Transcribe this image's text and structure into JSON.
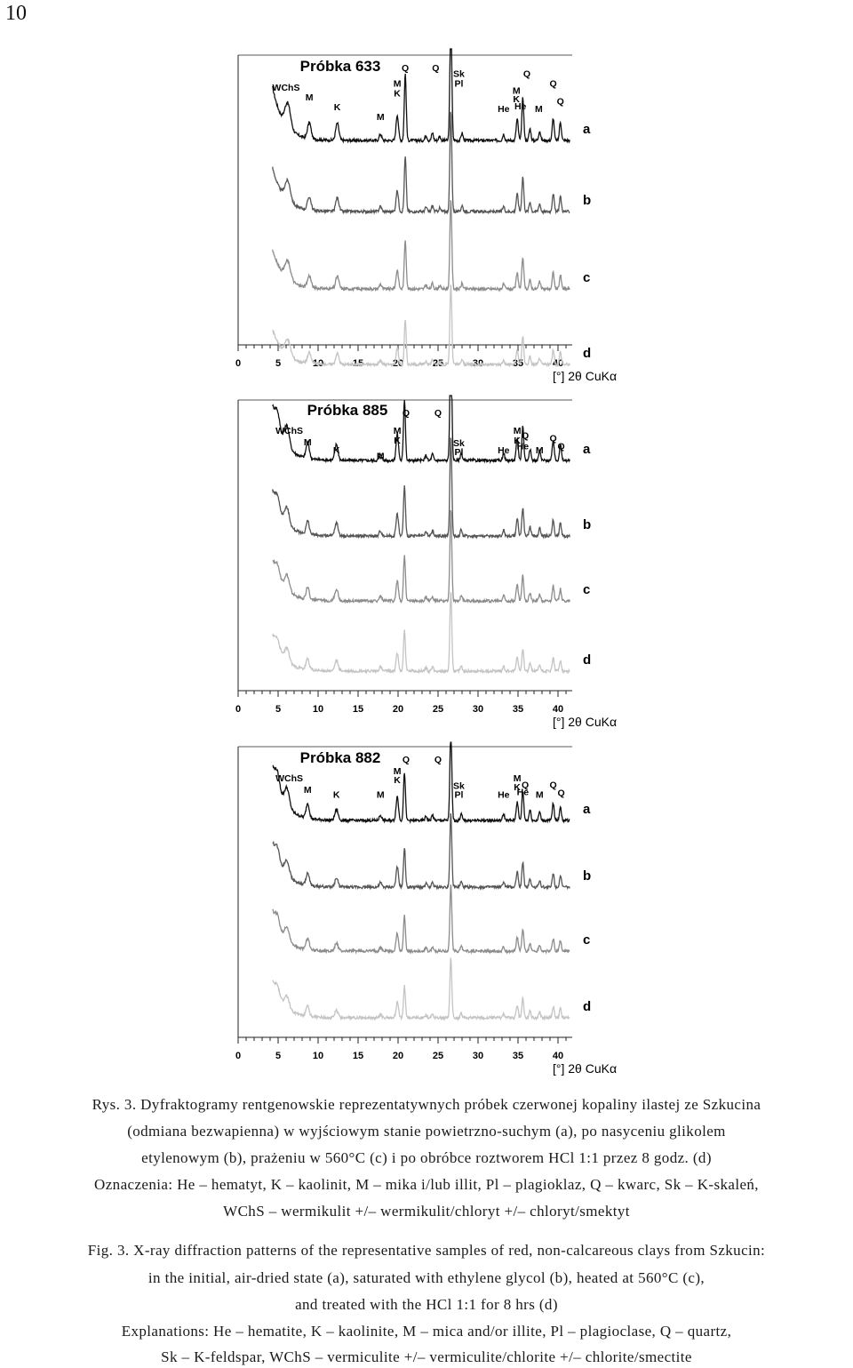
{
  "page_number": "10",
  "axis_unit_label": "[°] 2θ CuKα",
  "x_ticks": [
    0,
    5,
    10,
    15,
    20,
    25,
    30,
    35,
    40
  ],
  "curve_labels": [
    "a",
    "b",
    "c",
    "d"
  ],
  "curve_colors": [
    "#111111",
    "#555555",
    "#8c8c8c",
    "#c4c4c4"
  ],
  "chart_data": [
    {
      "type": "line",
      "title": "Próbka 633",
      "xlabel": "[°] 2θ CuKα",
      "xlim": [
        0,
        40
      ],
      "series": [
        {
          "name": "a"
        },
        {
          "name": "b"
        },
        {
          "name": "c"
        },
        {
          "name": "d"
        }
      ],
      "peaks": [
        {
          "x": 6.2,
          "h": 0.45,
          "w": 0.35
        },
        {
          "x": 8.9,
          "h": 0.3,
          "w": 0.22
        },
        {
          "x": 12.4,
          "h": 0.32,
          "w": 0.2
        },
        {
          "x": 17.8,
          "h": 0.12,
          "w": 0.15
        },
        {
          "x": 19.9,
          "h": 0.48,
          "w": 0.15
        },
        {
          "x": 20.9,
          "h": 1.25,
          "w": 0.12
        },
        {
          "x": 23.5,
          "h": 0.1,
          "w": 0.12
        },
        {
          "x": 24.3,
          "h": 0.14,
          "w": 0.12
        },
        {
          "x": 25.2,
          "h": 0.08,
          "w": 0.12
        },
        {
          "x": 26.6,
          "h": 2.3,
          "w": 0.12
        },
        {
          "x": 28.0,
          "h": 0.14,
          "w": 0.12
        },
        {
          "x": 33.2,
          "h": 0.12,
          "w": 0.12
        },
        {
          "x": 34.9,
          "h": 0.4,
          "w": 0.13
        },
        {
          "x": 35.6,
          "h": 0.8,
          "w": 0.12
        },
        {
          "x": 36.5,
          "h": 0.22,
          "w": 0.12
        },
        {
          "x": 37.7,
          "h": 0.18,
          "w": 0.12
        },
        {
          "x": 39.4,
          "h": 0.42,
          "w": 0.12
        },
        {
          "x": 40.3,
          "h": 0.35,
          "w": 0.12
        }
      ],
      "annotations": [
        {
          "text": "WChS",
          "x": 6.0,
          "row": 2
        },
        {
          "text": "M",
          "x": 8.9,
          "row": 3
        },
        {
          "text": "K",
          "x": 12.4,
          "row": 4
        },
        {
          "text": "M",
          "x": 17.8,
          "row": 5
        },
        {
          "text": "M",
          "x": 19.9,
          "row": 1.6
        },
        {
          "text": "K",
          "x": 19.9,
          "row": 2.6
        },
        {
          "text": "Q",
          "x": 20.9,
          "row": 0
        },
        {
          "text": "Q",
          "x": 24.7,
          "row": 0
        },
        {
          "text": "Sk",
          "x": 27.6,
          "row": 0.6
        },
        {
          "text": "Pl",
          "x": 27.6,
          "row": 1.6
        },
        {
          "text": "He",
          "x": 33.2,
          "row": 4.2
        },
        {
          "text": "M",
          "x": 34.8,
          "row": 2.3
        },
        {
          "text": "K",
          "x": 34.8,
          "row": 3.2
        },
        {
          "text": "He",
          "x": 35.3,
          "row": 3.9
        },
        {
          "text": "Q",
          "x": 36.1,
          "row": 0.6
        },
        {
          "text": "M",
          "x": 37.6,
          "row": 4.2
        },
        {
          "text": "Q",
          "x": 39.4,
          "row": 1.6
        },
        {
          "text": "Q",
          "x": 40.3,
          "row": 3.4
        }
      ]
    },
    {
      "type": "line",
      "title": "Próbka 885",
      "xlabel": "[°] 2θ CuKα",
      "xlim": [
        0,
        40
      ],
      "series": [
        {
          "name": "a"
        },
        {
          "name": "b"
        },
        {
          "name": "c"
        },
        {
          "name": "d"
        }
      ],
      "peaks": [
        {
          "x": 4.9,
          "h": 0.3,
          "w": 0.3
        },
        {
          "x": 6.1,
          "h": 0.38,
          "w": 0.3
        },
        {
          "x": 8.7,
          "h": 0.3,
          "w": 0.2
        },
        {
          "x": 12.3,
          "h": 0.3,
          "w": 0.2
        },
        {
          "x": 17.8,
          "h": 0.12,
          "w": 0.15
        },
        {
          "x": 19.9,
          "h": 0.5,
          "w": 0.15
        },
        {
          "x": 20.8,
          "h": 1.15,
          "w": 0.12
        },
        {
          "x": 23.5,
          "h": 0.1,
          "w": 0.12
        },
        {
          "x": 24.3,
          "h": 0.12,
          "w": 0.12
        },
        {
          "x": 26.6,
          "h": 2.3,
          "w": 0.12
        },
        {
          "x": 27.9,
          "h": 0.14,
          "w": 0.12
        },
        {
          "x": 33.2,
          "h": 0.14,
          "w": 0.12
        },
        {
          "x": 34.9,
          "h": 0.4,
          "w": 0.13
        },
        {
          "x": 35.6,
          "h": 0.65,
          "w": 0.12
        },
        {
          "x": 36.5,
          "h": 0.22,
          "w": 0.12
        },
        {
          "x": 37.7,
          "h": 0.18,
          "w": 0.12
        },
        {
          "x": 39.4,
          "h": 0.38,
          "w": 0.12
        },
        {
          "x": 40.3,
          "h": 0.3,
          "w": 0.12
        }
      ],
      "annotations": [
        {
          "text": "WChS",
          "x": 6.4,
          "row": 1.8
        },
        {
          "text": "M",
          "x": 8.7,
          "row": 3
        },
        {
          "text": "K",
          "x": 12.3,
          "row": 3.8
        },
        {
          "text": "M",
          "x": 17.8,
          "row": 4.4
        },
        {
          "text": "M",
          "x": 19.9,
          "row": 1.8
        },
        {
          "text": "K",
          "x": 19.9,
          "row": 2.8
        },
        {
          "text": "Q",
          "x": 21.0,
          "row": 0
        },
        {
          "text": "Q",
          "x": 25.0,
          "row": 0
        },
        {
          "text": "Sk",
          "x": 27.6,
          "row": 3.1
        },
        {
          "text": "Pl",
          "x": 27.6,
          "row": 4.0
        },
        {
          "text": "He",
          "x": 33.2,
          "row": 3.8
        },
        {
          "text": "M",
          "x": 34.9,
          "row": 1.8
        },
        {
          "text": "K",
          "x": 34.9,
          "row": 2.8
        },
        {
          "text": "Q",
          "x": 35.9,
          "row": 2.3
        },
        {
          "text": "He",
          "x": 35.6,
          "row": 3.4
        },
        {
          "text": "M",
          "x": 37.7,
          "row": 3.8
        },
        {
          "text": "Q",
          "x": 39.4,
          "row": 2.6
        },
        {
          "text": "Q",
          "x": 40.4,
          "row": 3.4
        }
      ]
    },
    {
      "type": "line",
      "title": "Próbka 882",
      "xlabel": "[°] 2θ CuKα",
      "xlim": [
        0,
        40
      ],
      "series": [
        {
          "name": "a"
        },
        {
          "name": "b"
        },
        {
          "name": "c"
        },
        {
          "name": "d"
        }
      ],
      "peaks": [
        {
          "x": 4.9,
          "h": 0.28,
          "w": 0.3
        },
        {
          "x": 6.1,
          "h": 0.34,
          "w": 0.3
        },
        {
          "x": 8.7,
          "h": 0.28,
          "w": 0.2
        },
        {
          "x": 12.3,
          "h": 0.2,
          "w": 0.2
        },
        {
          "x": 17.8,
          "h": 0.1,
          "w": 0.15
        },
        {
          "x": 19.9,
          "h": 0.45,
          "w": 0.15
        },
        {
          "x": 20.8,
          "h": 0.9,
          "w": 0.12
        },
        {
          "x": 23.5,
          "h": 0.08,
          "w": 0.12
        },
        {
          "x": 24.3,
          "h": 0.1,
          "w": 0.12
        },
        {
          "x": 26.6,
          "h": 1.7,
          "w": 0.12
        },
        {
          "x": 27.9,
          "h": 0.12,
          "w": 0.12
        },
        {
          "x": 33.2,
          "h": 0.12,
          "w": 0.12
        },
        {
          "x": 34.9,
          "h": 0.35,
          "w": 0.13
        },
        {
          "x": 35.6,
          "h": 0.55,
          "w": 0.12
        },
        {
          "x": 36.5,
          "h": 0.2,
          "w": 0.12
        },
        {
          "x": 37.7,
          "h": 0.16,
          "w": 0.12
        },
        {
          "x": 39.4,
          "h": 0.32,
          "w": 0.12
        },
        {
          "x": 40.3,
          "h": 0.26,
          "w": 0.12
        }
      ],
      "annotations": [
        {
          "text": "WChS",
          "x": 6.4,
          "row": 1.9
        },
        {
          "text": "M",
          "x": 8.7,
          "row": 3.1
        },
        {
          "text": "K",
          "x": 12.3,
          "row": 3.6
        },
        {
          "text": "M",
          "x": 17.8,
          "row": 3.6
        },
        {
          "text": "M",
          "x": 19.9,
          "row": 1.2
        },
        {
          "text": "K",
          "x": 19.9,
          "row": 2.1
        },
        {
          "text": "Q",
          "x": 21.0,
          "row": 0
        },
        {
          "text": "Q",
          "x": 25.0,
          "row": 0
        },
        {
          "text": "Sk",
          "x": 27.6,
          "row": 2.7
        },
        {
          "text": "Pl",
          "x": 27.6,
          "row": 3.6
        },
        {
          "text": "He",
          "x": 33.2,
          "row": 3.6
        },
        {
          "text": "M",
          "x": 34.9,
          "row": 1.9
        },
        {
          "text": "K",
          "x": 34.9,
          "row": 2.8
        },
        {
          "text": "Q",
          "x": 35.9,
          "row": 2.6
        },
        {
          "text": "He",
          "x": 35.6,
          "row": 3.3
        },
        {
          "text": "M",
          "x": 37.7,
          "row": 3.6
        },
        {
          "text": "Q",
          "x": 39.4,
          "row": 2.6
        },
        {
          "text": "Q",
          "x": 40.4,
          "row": 3.4
        }
      ]
    }
  ],
  "caption_pl": [
    "Rys. 3. Dyfraktogramy rentgenowskie reprezentatywnych próbek czerwonej kopaliny ilastej ze Szkucina",
    "(odmiana bezwapienna) w wyjściowym stanie powietrzno-suchym (a), po nasyceniu glikolem",
    "etylenowym (b), prażeniu w 560°C (c) i po obróbce roztworem HCl 1:1 przez 8 godz. (d)",
    "Oznaczenia: He – hematyt, K – kaolinit, M – mika i/lub illit, Pl – plagioklaz, Q – kwarc, Sk – K-skaleń,",
    "WChS – wermikulit +/– wermikulit/chloryt +/– chloryt/smektyt"
  ],
  "caption_en": [
    "Fig. 3. X-ray diffraction patterns of the representative samples of red, non-calcareous clays from Szkucin:",
    "in the initial, air-dried state (a), saturated with ethylene glycol (b), heated at 560°C (c),",
    "and treated with the HCl 1:1 for 8 hrs (d)",
    "Explanations: He – hematite, K – kaolinite, M – mica and/or illite, Pl – plagioclase, Q – quartz,",
    "Sk – K-feldspar, WChS – vermiculite +/– vermiculite/chlorite +/– chlorite/smectite"
  ]
}
